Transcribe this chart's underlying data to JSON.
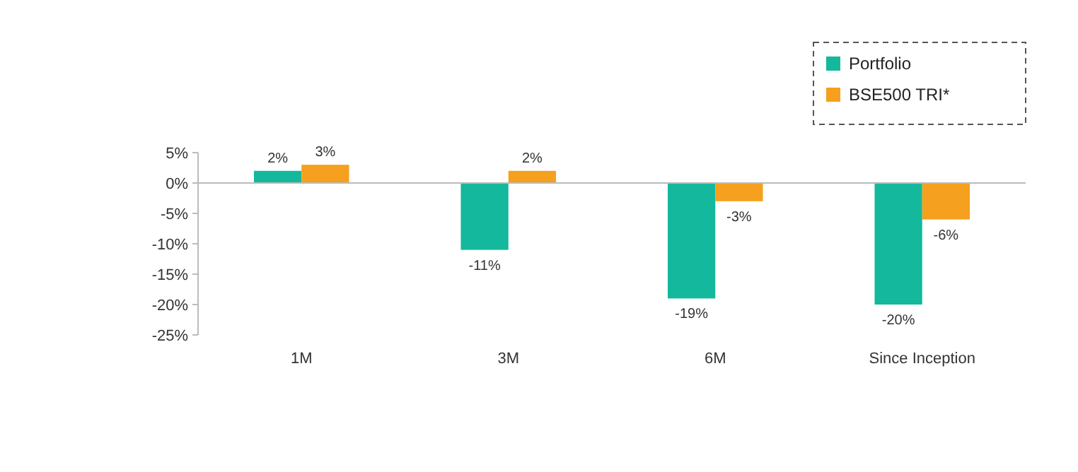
{
  "chart_data": {
    "type": "bar",
    "categories": [
      "1M",
      "3M",
      "6M",
      "Since Inception"
    ],
    "series": [
      {
        "name": "Portfolio",
        "color": "#14b89c",
        "values": [
          2,
          -11,
          -19,
          -20
        ],
        "value_labels": [
          "2%",
          "-11%",
          "-19%",
          "-20%"
        ]
      },
      {
        "name": "BSE500 TRI*",
        "color": "#f5a01e",
        "values": [
          3,
          2,
          -3,
          -6
        ],
        "value_labels": [
          "3%",
          "2%",
          "-3%",
          "-6%"
        ]
      }
    ],
    "ylim": [
      -25,
      5
    ],
    "yticks": [
      {
        "value": 5,
        "label": "5%"
      },
      {
        "value": 0,
        "label": "0%"
      },
      {
        "value": -5,
        "label": "-5%"
      },
      {
        "value": -10,
        "label": "-10%"
      },
      {
        "value": -15,
        "label": "-15%"
      },
      {
        "value": -20,
        "label": "-20%"
      },
      {
        "value": -25,
        "label": "-25%"
      }
    ],
    "legend": "top right"
  }
}
